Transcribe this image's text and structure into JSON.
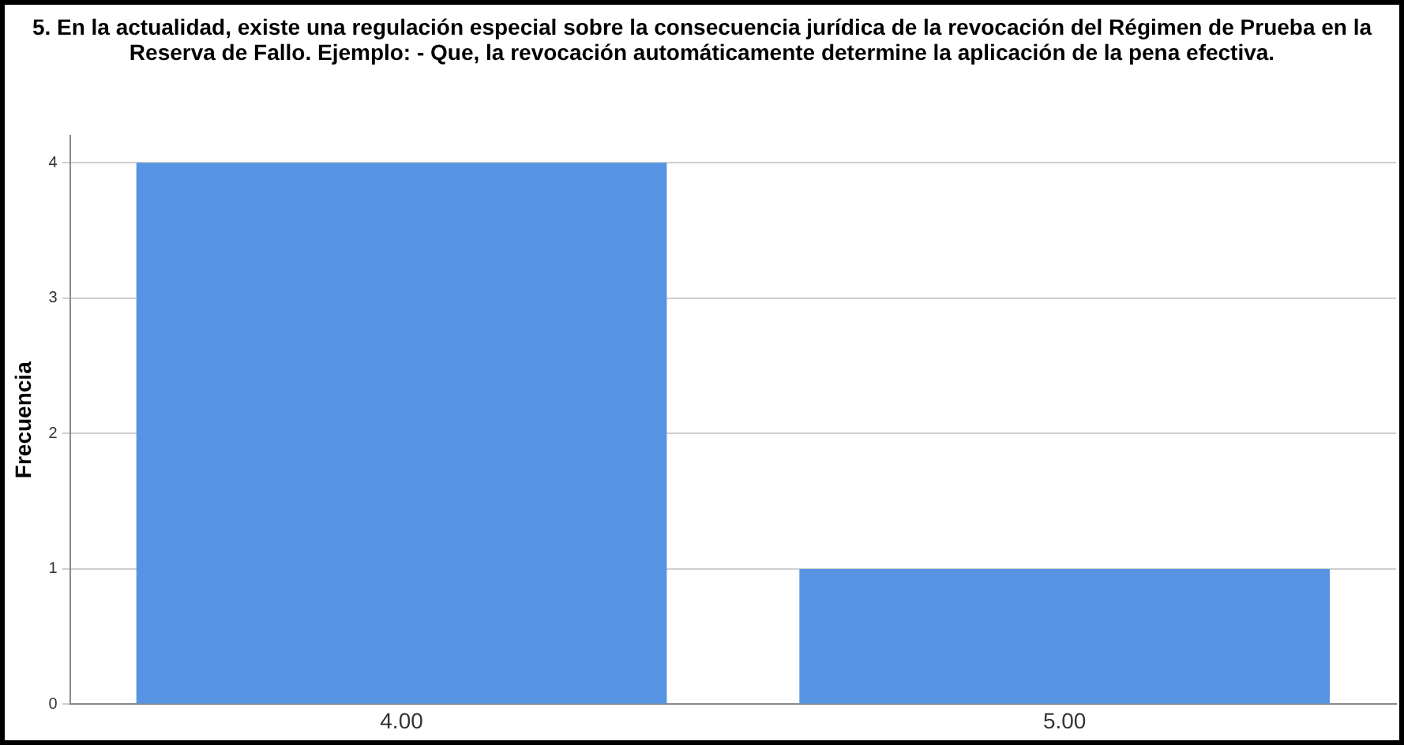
{
  "chart_data": {
    "type": "bar",
    "title": "5. En la actualidad, existe una regulación especial sobre la consecuencia jurídica de la revocación del Régimen de Prueba en la Reserva de Fallo. Ejemplo: - Que, la revocación automáticamente determine la aplicación de la pena efectiva.",
    "ylabel": "Frecuencia",
    "categories": [
      "4.00",
      "5.00"
    ],
    "values": [
      4,
      1
    ],
    "color": "#5694e3",
    "ylim": [
      0,
      4.2
    ],
    "yticks": [
      0,
      1,
      2,
      3,
      4
    ],
    "grid": "y",
    "legend": false
  }
}
